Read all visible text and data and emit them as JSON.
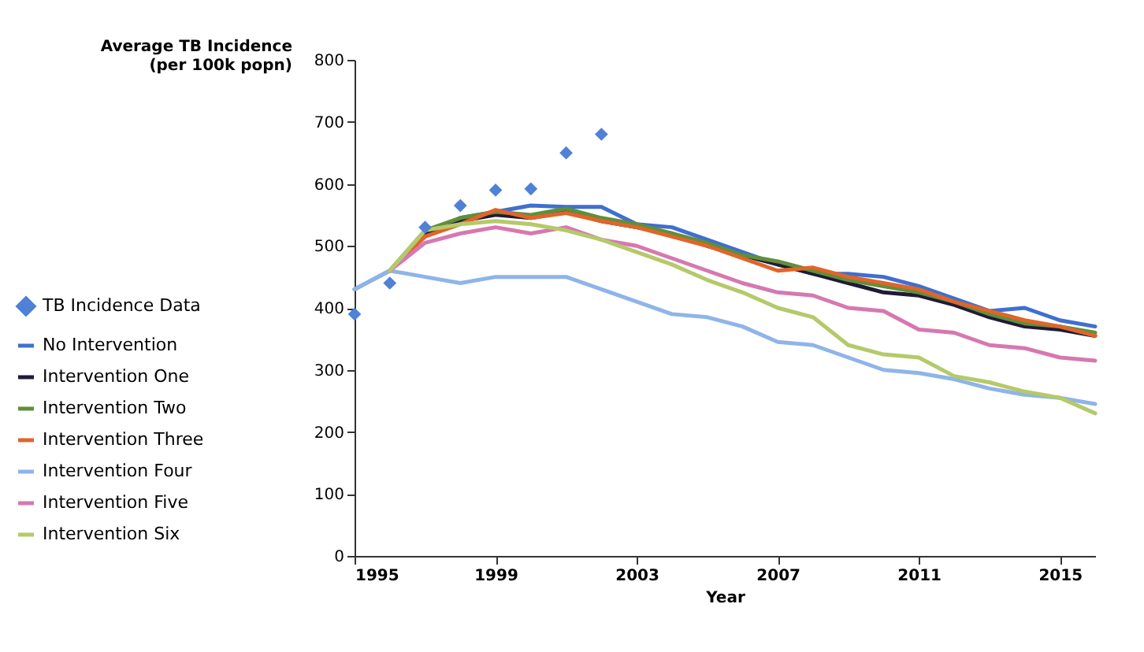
{
  "chart_data": {
    "type": "line",
    "xlabel": "Year",
    "ylabel": "Average TB Incidence\n(per 100k popn)",
    "x": [
      1995,
      1996,
      1997,
      1998,
      1999,
      2000,
      2001,
      2002,
      2003,
      2004,
      2005,
      2006,
      2007,
      2008,
      2009,
      2010,
      2011,
      2012,
      2013,
      2014,
      2015,
      2016
    ],
    "xlim": [
      1995,
      2016
    ],
    "xticks": [
      1995,
      1999,
      2003,
      2007,
      2011,
      2015
    ],
    "ylim": [
      0,
      800
    ],
    "yticks": [
      0,
      100,
      200,
      300,
      400,
      500,
      600,
      700,
      800
    ],
    "grid": false,
    "legend": "left",
    "line_style": "solid",
    "series": [
      {
        "name": "TB Incidence Data",
        "type": "scatter",
        "marker": "diamond",
        "color": "#4f81d6",
        "values": [
          390,
          440,
          530,
          565,
          590,
          592,
          650,
          680,
          null,
          null,
          null,
          null,
          null,
          null,
          null,
          null,
          null,
          null,
          null,
          null,
          null,
          null
        ]
      },
      {
        "name": "No Intervention",
        "type": "line",
        "color": "#3f6fcf",
        "values": [
          430,
          460,
          520,
          545,
          555,
          565,
          563,
          563,
          535,
          530,
          510,
          490,
          470,
          455,
          455,
          450,
          435,
          415,
          395,
          400,
          380,
          370
        ]
      },
      {
        "name": "Intervention One",
        "type": "line",
        "color": "#1f1a3a",
        "values": [
          null,
          460,
          520,
          540,
          550,
          545,
          555,
          540,
          530,
          520,
          500,
          485,
          470,
          455,
          440,
          425,
          420,
          405,
          385,
          370,
          365,
          355
        ]
      },
      {
        "name": "Intervention Two",
        "type": "line",
        "color": "#5f8f3a",
        "values": [
          null,
          460,
          525,
          545,
          555,
          550,
          560,
          545,
          535,
          520,
          505,
          485,
          475,
          460,
          445,
          435,
          425,
          410,
          390,
          375,
          370,
          360
        ]
      },
      {
        "name": "Intervention Three",
        "type": "line",
        "color": "#e0652a",
        "values": [
          null,
          460,
          515,
          535,
          558,
          545,
          553,
          540,
          530,
          515,
          500,
          480,
          460,
          465,
          450,
          440,
          430,
          410,
          395,
          380,
          370,
          355
        ]
      },
      {
        "name": "Intervention Four",
        "type": "line",
        "color": "#8fb4e8",
        "values": [
          430,
          460,
          450,
          440,
          450,
          450,
          450,
          430,
          410,
          390,
          385,
          370,
          345,
          340,
          320,
          300,
          295,
          285,
          270,
          260,
          255,
          245
        ]
      },
      {
        "name": "Intervention Five",
        "type": "line",
        "color": "#d678b0",
        "values": [
          null,
          460,
          505,
          520,
          530,
          520,
          530,
          510,
          500,
          480,
          460,
          440,
          425,
          420,
          400,
          395,
          365,
          360,
          340,
          335,
          320,
          315
        ]
      },
      {
        "name": "Intervention Six",
        "type": "line",
        "color": "#b5c96a",
        "values": [
          null,
          460,
          525,
          535,
          540,
          535,
          525,
          510,
          490,
          470,
          445,
          425,
          400,
          385,
          340,
          325,
          320,
          290,
          280,
          265,
          255,
          230
        ]
      }
    ]
  }
}
